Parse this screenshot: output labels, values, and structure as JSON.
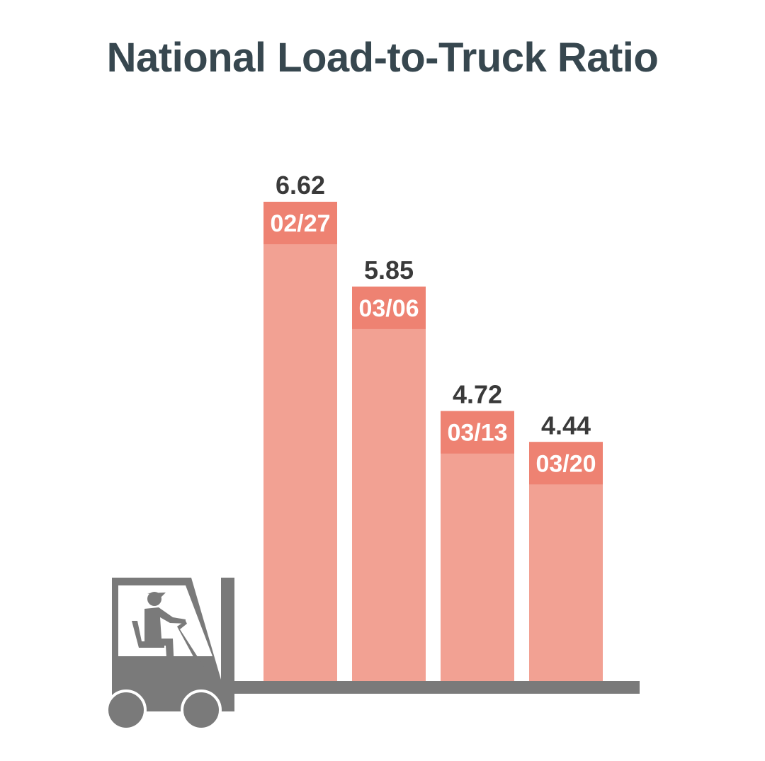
{
  "chart_data": {
    "type": "bar",
    "title": "National Load-to-Truck Ratio",
    "categories": [
      "02/27",
      "03/06",
      "03/13",
      "03/20"
    ],
    "values": [
      6.62,
      5.85,
      4.72,
      4.44
    ],
    "value_labels": [
      "6.62",
      "5.85",
      "4.72",
      "4.44"
    ],
    "xlabel": "",
    "ylabel": "",
    "ylim": [
      2.27,
      6.62
    ],
    "grid": false,
    "colors": {
      "bar": "#F2A193",
      "label_band": "#EE8272",
      "title": "#37474F",
      "forklift": "#7A7A7A"
    }
  }
}
